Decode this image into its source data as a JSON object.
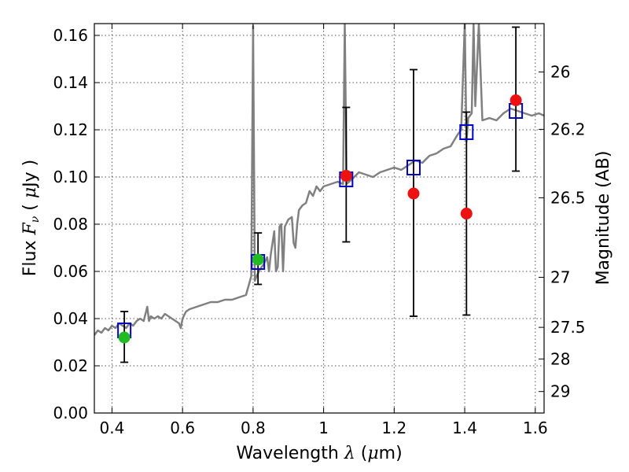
{
  "chart_data": {
    "type": "scatter",
    "xlabel": {
      "pre": "Wavelength  ",
      "sym": "λ",
      "post": " (",
      "mu": "μ",
      "unit": "m)"
    },
    "ylabel": {
      "pre": "Flux  ",
      "sym": "F",
      "sub": "ν",
      "post": "  (  ",
      "mu": "μ",
      "unit": "Jy )"
    },
    "y2label": "Magnitude (AB)",
    "xlim": [
      0.35,
      1.625
    ],
    "ylim": [
      0.0,
      0.165
    ],
    "grid": true,
    "x_ticks": [
      0.4,
      0.6,
      0.8,
      1.0,
      1.2,
      1.4,
      1.6
    ],
    "x_tick_labels": [
      "0.4",
      "0.6",
      "0.8",
      "1",
      "1.2",
      "1.4",
      "1.6"
    ],
    "y_ticks": [
      0.0,
      0.02,
      0.04,
      0.06,
      0.08,
      0.1,
      0.12,
      0.14,
      0.16
    ],
    "y_tick_labels": [
      "0.00",
      "0.02",
      "0.04",
      "0.06",
      "0.08",
      "0.10",
      "0.12",
      "0.14",
      "0.16"
    ],
    "y2_ticks": [
      {
        "label": "26",
        "flux": 0.1445
      },
      {
        "label": "26.2",
        "flux": 0.1202
      },
      {
        "label": "26.5",
        "flux": 0.0912
      },
      {
        "label": "27",
        "flux": 0.0575
      },
      {
        "label": "27.5",
        "flux": 0.0363
      },
      {
        "label": "28",
        "flux": 0.0229
      },
      {
        "label": "29",
        "flux": 0.0091
      }
    ],
    "colors": {
      "model": "#808080",
      "photometry_box": "#0000cc",
      "green_points": "#22bb22",
      "red_points": "#ee1111",
      "errorbar": "#000000"
    },
    "model_spectrum": [
      [
        0.35,
        0.033
      ],
      [
        0.36,
        0.035
      ],
      [
        0.37,
        0.034
      ],
      [
        0.38,
        0.036
      ],
      [
        0.39,
        0.035
      ],
      [
        0.4,
        0.037
      ],
      [
        0.41,
        0.036
      ],
      [
        0.42,
        0.038
      ],
      [
        0.43,
        0.037
      ],
      [
        0.44,
        0.036
      ],
      [
        0.45,
        0.038
      ],
      [
        0.46,
        0.037
      ],
      [
        0.47,
        0.039
      ],
      [
        0.48,
        0.04
      ],
      [
        0.49,
        0.039
      ],
      [
        0.5,
        0.045
      ],
      [
        0.505,
        0.039
      ],
      [
        0.51,
        0.041
      ],
      [
        0.52,
        0.04
      ],
      [
        0.53,
        0.041
      ],
      [
        0.54,
        0.04
      ],
      [
        0.55,
        0.042
      ],
      [
        0.56,
        0.041
      ],
      [
        0.57,
        0.04
      ],
      [
        0.58,
        0.039
      ],
      [
        0.59,
        0.038
      ],
      [
        0.595,
        0.036
      ],
      [
        0.6,
        0.04
      ],
      [
        0.61,
        0.043
      ],
      [
        0.62,
        0.044
      ],
      [
        0.64,
        0.045
      ],
      [
        0.66,
        0.046
      ],
      [
        0.68,
        0.047
      ],
      [
        0.7,
        0.047
      ],
      [
        0.72,
        0.048
      ],
      [
        0.74,
        0.048
      ],
      [
        0.76,
        0.049
      ],
      [
        0.78,
        0.05
      ],
      [
        0.795,
        0.058
      ],
      [
        0.8,
        0.164
      ],
      [
        0.805,
        0.056
      ],
      [
        0.81,
        0.058
      ],
      [
        0.82,
        0.061
      ],
      [
        0.83,
        0.063
      ],
      [
        0.84,
        0.066
      ],
      [
        0.845,
        0.06
      ],
      [
        0.85,
        0.067
      ],
      [
        0.86,
        0.077
      ],
      [
        0.865,
        0.06
      ],
      [
        0.87,
        0.062
      ],
      [
        0.875,
        0.079
      ],
      [
        0.88,
        0.08
      ],
      [
        0.885,
        0.06
      ],
      [
        0.89,
        0.079
      ],
      [
        0.9,
        0.082
      ],
      [
        0.91,
        0.083
      ],
      [
        0.915,
        0.072
      ],
      [
        0.92,
        0.07
      ],
      [
        0.925,
        0.08
      ],
      [
        0.93,
        0.086
      ],
      [
        0.94,
        0.088
      ],
      [
        0.95,
        0.089
      ],
      [
        0.96,
        0.094
      ],
      [
        0.97,
        0.092
      ],
      [
        0.98,
        0.096
      ],
      [
        0.99,
        0.094
      ],
      [
        1.0,
        0.096
      ],
      [
        1.02,
        0.097
      ],
      [
        1.04,
        0.098
      ],
      [
        1.055,
        0.097
      ],
      [
        1.06,
        0.165
      ],
      [
        1.065,
        0.097
      ],
      [
        1.08,
        0.099
      ],
      [
        1.1,
        0.102
      ],
      [
        1.12,
        0.101
      ],
      [
        1.14,
        0.1
      ],
      [
        1.16,
        0.102
      ],
      [
        1.18,
        0.103
      ],
      [
        1.2,
        0.104
      ],
      [
        1.22,
        0.103
      ],
      [
        1.24,
        0.105
      ],
      [
        1.26,
        0.107
      ],
      [
        1.28,
        0.106
      ],
      [
        1.3,
        0.109
      ],
      [
        1.32,
        0.11
      ],
      [
        1.34,
        0.112
      ],
      [
        1.36,
        0.113
      ],
      [
        1.38,
        0.118
      ],
      [
        1.39,
        0.12
      ],
      [
        1.4,
        0.165
      ],
      [
        1.405,
        0.115
      ],
      [
        1.41,
        0.125
      ],
      [
        1.42,
        0.127
      ],
      [
        1.425,
        0.165
      ],
      [
        1.43,
        0.13
      ],
      [
        1.44,
        0.165
      ],
      [
        1.45,
        0.124
      ],
      [
        1.47,
        0.125
      ],
      [
        1.49,
        0.124
      ],
      [
        1.51,
        0.127
      ],
      [
        1.53,
        0.129
      ],
      [
        1.55,
        0.128
      ],
      [
        1.57,
        0.127
      ],
      [
        1.59,
        0.126
      ],
      [
        1.61,
        0.127
      ],
      [
        1.625,
        0.126
      ]
    ],
    "model_photometry": [
      {
        "x": 0.435,
        "y": 0.035
      },
      {
        "x": 0.814,
        "y": 0.064
      },
      {
        "x": 1.064,
        "y": 0.099
      },
      {
        "x": 1.255,
        "y": 0.104
      },
      {
        "x": 1.405,
        "y": 0.119
      },
      {
        "x": 1.545,
        "y": 0.128
      }
    ],
    "green_points": [
      {
        "x": 0.435,
        "y": 0.032,
        "err_lo": 0.0215,
        "err_hi": 0.043
      },
      {
        "x": 0.814,
        "y": 0.065,
        "err_lo": 0.0545,
        "err_hi": 0.0763
      }
    ],
    "red_points": [
      {
        "x": 1.064,
        "y": 0.1005,
        "err_lo": 0.0725,
        "err_hi": 0.1295
      },
      {
        "x": 1.255,
        "y": 0.093,
        "err_lo": 0.041,
        "err_hi": 0.1455
      },
      {
        "x": 1.405,
        "y": 0.0845,
        "err_lo": 0.0415,
        "err_hi": 0.1275
      },
      {
        "x": 1.545,
        "y": 0.1325,
        "err_lo": 0.1025,
        "err_hi": 0.1635
      }
    ]
  }
}
